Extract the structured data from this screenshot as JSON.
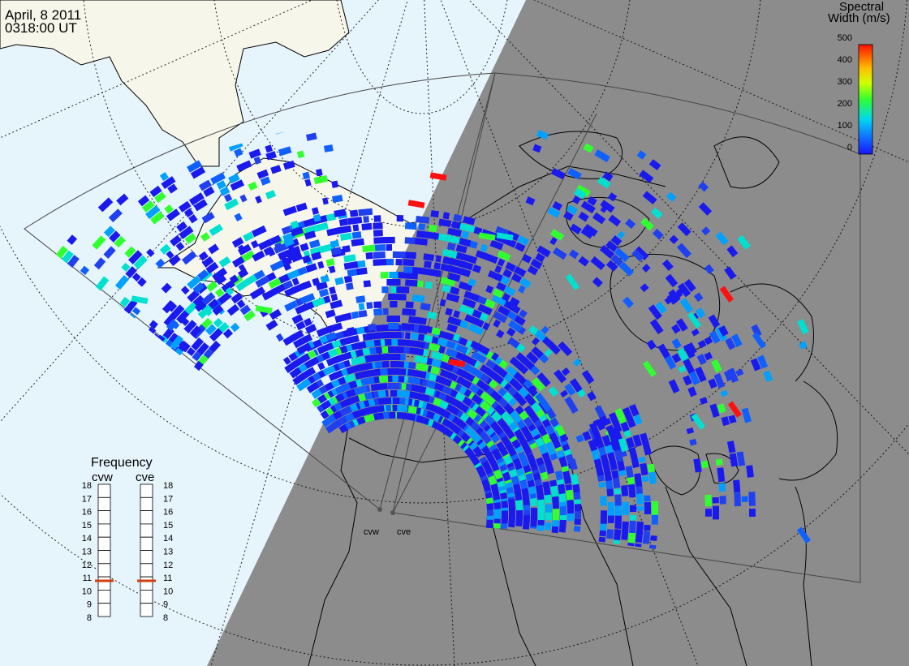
{
  "header": {
    "date": "April, 8 2011",
    "time": "0318:00 UT"
  },
  "colorbar": {
    "title_line1": "Spectral",
    "title_line2": "Width (m/s)",
    "ticks": [
      "500",
      "400",
      "300",
      "200",
      "100",
      "0"
    ],
    "min": 0,
    "max": 500,
    "colors": [
      "#1515ff",
      "#1060ff",
      "#00b4ff",
      "#00e0d0",
      "#30ff30",
      "#c8ff00",
      "#ffd000",
      "#ff8000",
      "#ff1000"
    ]
  },
  "frequency_panel": {
    "title": "Frequency",
    "radars": [
      "cvw",
      "cve"
    ],
    "scale": [
      "18",
      "17",
      "16",
      "15",
      "14",
      "13",
      "12",
      "11",
      "10",
      "9",
      "8"
    ],
    "current_mhz": {
      "cvw": 11.0,
      "cve": 11.0
    },
    "marker_color": "#d04010"
  },
  "sites": {
    "cvw": "cvw",
    "cve": "cve"
  },
  "colors": {
    "ocean": "#e6f4fc",
    "land": "#f6f6ea",
    "night": "#8c8c8c",
    "low_width": "#1a1aee",
    "high_width": "#ff1010"
  }
}
